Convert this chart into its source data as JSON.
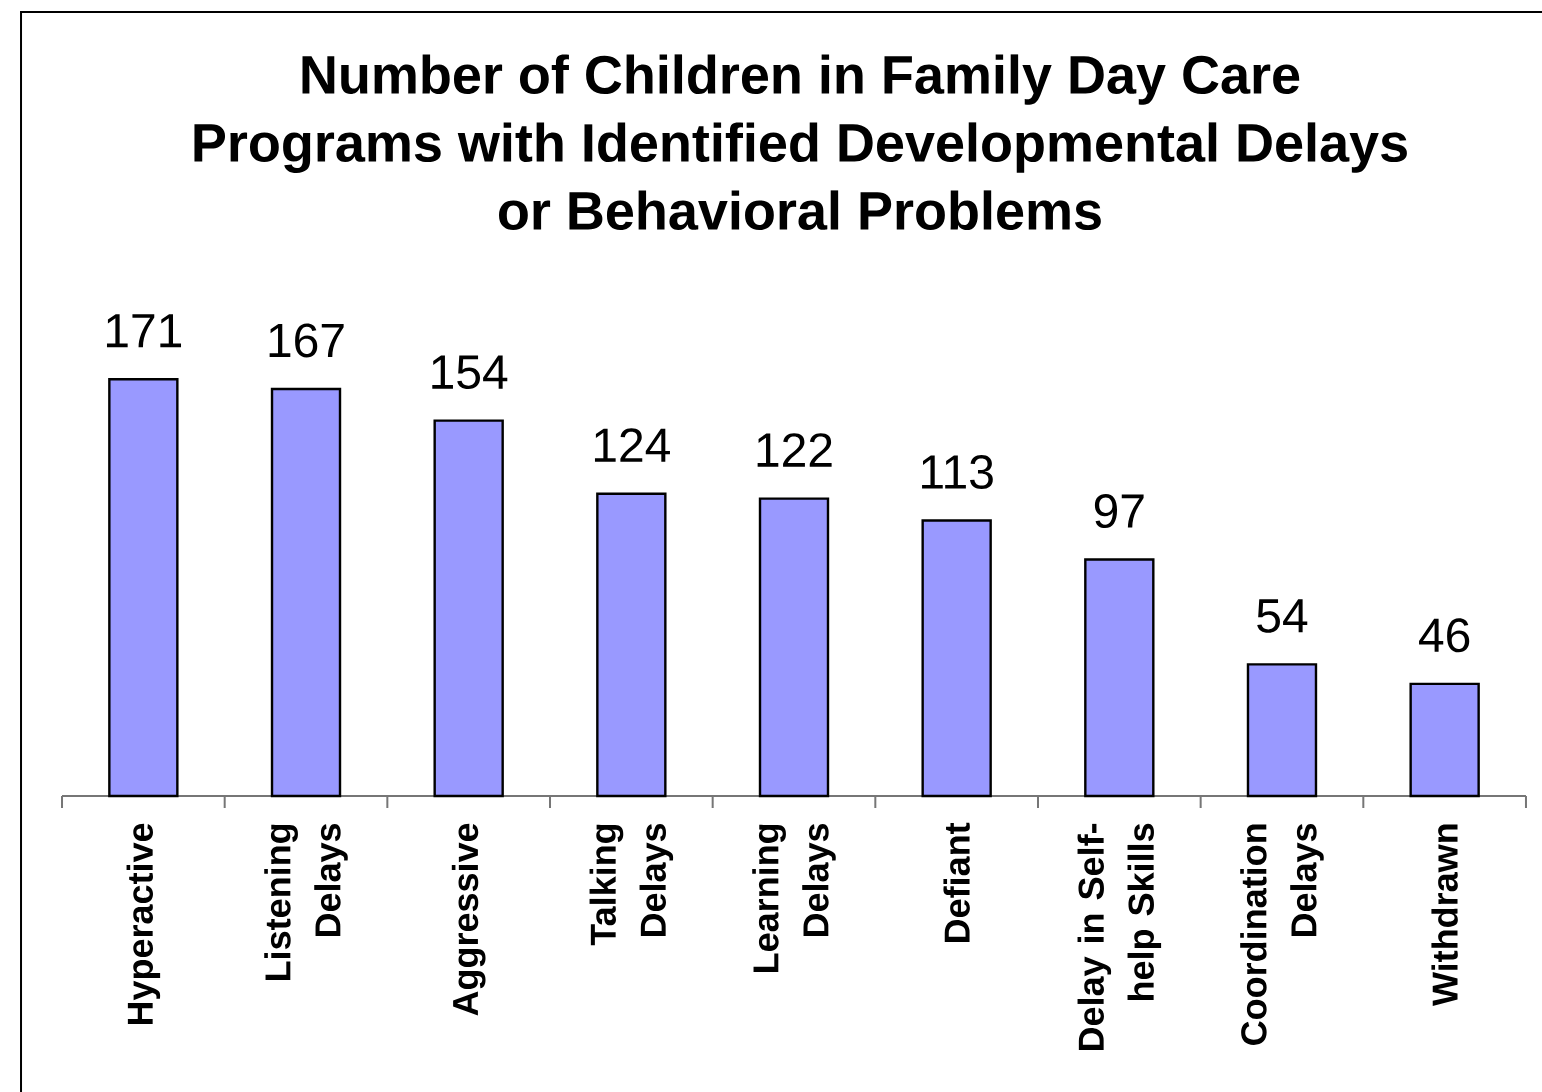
{
  "chart_data": {
    "type": "bar",
    "title": "Number of Children in Family Day Care Programs with Identified Developmental Delays or Behavioral Problems",
    "categories": [
      "Hyperactive",
      "Listening Delays",
      "Aggressive",
      "Talking Delays",
      "Learning Delays",
      "Defiant",
      "Delay in Self-help Skills",
      "Coordination Delays",
      "Withdrawn"
    ],
    "values": [
      171,
      167,
      154,
      124,
      122,
      113,
      97,
      54,
      46
    ],
    "color": "#9999ff",
    "data_labels": true
  }
}
